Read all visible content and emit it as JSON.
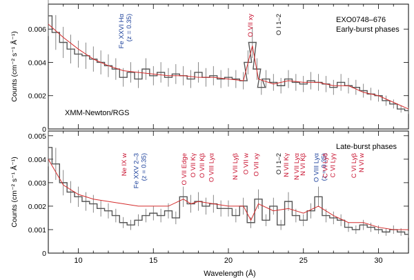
{
  "chart_data": [
    {
      "type": "line",
      "panel": "top",
      "title_lines": [
        "EXO0748–676",
        "Early-burst phases"
      ],
      "corner_label": "XMM-Newton/RGS",
      "xlabel": "",
      "ylabel": "Counts (cm⁻² s⁻¹ Å⁻¹)",
      "xlim": [
        8,
        32
      ],
      "ylim": [
        0,
        0.0075
      ],
      "yticks": [
        "0",
        "0.002",
        "0.004",
        "0.006"
      ],
      "annotations": [
        {
          "x": 13.0,
          "lines": [
            "Fe XXVI Hα",
            "(z = 0.35)"
          ],
          "color": "#1a3f9a"
        },
        {
          "x": 21.6,
          "lines": [
            "O VII xy"
          ],
          "color": "#c8102e"
        },
        {
          "x": 23.5,
          "lines": [
            "O I 1–2"
          ],
          "color": "#111111"
        }
      ],
      "series": [
        {
          "role": "data",
          "color": "#555555",
          "x": [
            8,
            8.5,
            9,
            9.5,
            10,
            10.5,
            11,
            11.5,
            12,
            12.5,
            13,
            13.5,
            14,
            14.5,
            15,
            15.5,
            16,
            16.5,
            17,
            17.5,
            18,
            18.5,
            19,
            19.5,
            20,
            20.5,
            21,
            21.3,
            21.6,
            21.9,
            22.2,
            22.5,
            23,
            23.5,
            24,
            24.5,
            25,
            25.5,
            26,
            26.5,
            27,
            27.5,
            28,
            28.5,
            29,
            29.5,
            30,
            30.5,
            31,
            31.5,
            32
          ],
          "y": [
            0.0068,
            0.0058,
            0.0052,
            0.0048,
            0.0045,
            0.0044,
            0.0042,
            0.004,
            0.0038,
            0.0036,
            0.0031,
            0.0034,
            0.003,
            0.0036,
            0.0032,
            0.0034,
            0.0031,
            0.0033,
            0.0032,
            0.003,
            0.0034,
            0.0031,
            0.0032,
            0.003,
            0.0031,
            0.003,
            0.0029,
            0.004,
            0.0052,
            0.0036,
            0.0025,
            0.003,
            0.0028,
            0.0026,
            0.003,
            0.0028,
            0.0027,
            0.0029,
            0.0028,
            0.0027,
            0.0025,
            0.0028,
            0.0026,
            0.0025,
            0.0023,
            0.0021,
            0.002,
            0.0017,
            0.0015,
            0.0012,
            0.0011
          ]
        },
        {
          "role": "model",
          "color": "#d42a2a",
          "x": [
            8,
            9,
            10,
            11,
            12,
            13,
            14,
            15,
            16,
            17,
            18,
            19,
            20,
            21,
            21.6,
            22,
            23,
            24,
            25,
            26,
            27,
            28,
            29,
            30,
            31,
            32
          ],
          "y": [
            0.0063,
            0.0055,
            0.0048,
            0.0042,
            0.0038,
            0.0035,
            0.0034,
            0.0033,
            0.0032,
            0.0032,
            0.0031,
            0.0031,
            0.003,
            0.0029,
            0.005,
            0.003,
            0.0027,
            0.0029,
            0.0028,
            0.0028,
            0.0026,
            0.0026,
            0.0022,
            0.002,
            0.0016,
            0.0012
          ]
        }
      ]
    },
    {
      "type": "line",
      "panel": "bottom",
      "title_lines": [
        "Late-burst phases"
      ],
      "xlabel": "Wavelength (Å)",
      "ylabel": "Counts (cm⁻² s⁻¹ Å⁻¹)",
      "xlim": [
        8,
        32
      ],
      "ylim": [
        0,
        0.0052
      ],
      "xticks": [
        "10",
        "15",
        "20",
        "25",
        "30"
      ],
      "yticks": [
        "0",
        "0.001",
        "0.002",
        "0.003",
        "0.004",
        "0.005"
      ],
      "annotations": [
        {
          "x": 13.2,
          "lines": [
            "Ne IX w"
          ],
          "color": "#c8102e"
        },
        {
          "x": 14.0,
          "lines": [
            "Fe XXV 2–3",
            "(z = 0.35)"
          ],
          "color": "#1a3f9a"
        },
        {
          "x": 17.2,
          "lines": [
            "O VII Edge"
          ],
          "color": "#c8102e"
        },
        {
          "x": 17.8,
          "lines": [
            "O VII Kγ"
          ],
          "color": "#c8102e"
        },
        {
          "x": 18.4,
          "lines": [
            "O VII Kβ"
          ],
          "color": "#c8102e"
        },
        {
          "x": 19.0,
          "lines": [
            "O VIII Lyα"
          ],
          "color": "#c8102e"
        },
        {
          "x": 20.6,
          "lines": [
            "N VII Lyβ"
          ],
          "color": "#c8102e"
        },
        {
          "x": 21.3,
          "lines": [
            "O VII w"
          ],
          "color": "#c8102e"
        },
        {
          "x": 22.0,
          "lines": [
            "O VII xy"
          ],
          "color": "#c8102e"
        },
        {
          "x": 23.5,
          "lines": [
            "O I 1–2"
          ],
          "color": "#111111"
        },
        {
          "x": 24.0,
          "lines": [
            "N VII Kγ"
          ],
          "color": "#c8102e"
        },
        {
          "x": 24.7,
          "lines": [
            "N VII Lyα"
          ],
          "color": "#c8102e"
        },
        {
          "x": 25.1,
          "lines": [
            "N VI Kβ"
          ],
          "color": "#c8102e"
        },
        {
          "x": 26.0,
          "lines": [
            "O VIII Lyα",
            "(z = 0.35)"
          ],
          "color": "#1a3f9a"
        },
        {
          "x": 26.6,
          "lines": [
            "C VI Lyδ"
          ],
          "color": "#c8102e"
        },
        {
          "x": 27.1,
          "lines": [
            "C VI Lyγ"
          ],
          "color": "#c8102e"
        },
        {
          "x": 28.5,
          "lines": [
            "C VI Lyβ"
          ],
          "color": "#c8102e"
        },
        {
          "x": 29.0,
          "lines": [
            "N VI w"
          ],
          "color": "#c8102e"
        }
      ],
      "series": [
        {
          "role": "data",
          "color": "#555555",
          "x": [
            8,
            8.5,
            9,
            9.5,
            10,
            10.5,
            11,
            11.5,
            12,
            12.5,
            13,
            13.5,
            14,
            14.5,
            15,
            15.5,
            16,
            16.5,
            17,
            17.5,
            18,
            18.5,
            19,
            19.5,
            20,
            20.5,
            21,
            21.5,
            22,
            22.5,
            23,
            23.5,
            24,
            24.5,
            25,
            25.5,
            26,
            26.5,
            27,
            27.5,
            28,
            28.5,
            29,
            29.5,
            30,
            30.5,
            31,
            31.5,
            32
          ],
          "y": [
            0.0045,
            0.0038,
            0.003,
            0.0026,
            0.0024,
            0.0022,
            0.0021,
            0.0019,
            0.0018,
            0.0016,
            0.0013,
            0.0012,
            0.0014,
            0.0016,
            0.0017,
            0.0016,
            0.0018,
            0.0015,
            0.0024,
            0.0021,
            0.0022,
            0.002,
            0.0021,
            0.0019,
            0.0019,
            0.0016,
            0.002,
            0.0013,
            0.0023,
            0.0014,
            0.002,
            0.0012,
            0.0022,
            0.0016,
            0.0014,
            0.0018,
            0.0024,
            0.0016,
            0.0015,
            0.0014,
            0.0011,
            0.001,
            0.0012,
            0.0011,
            0.001,
            0.0009,
            0.001,
            0.0009,
            0.0008
          ]
        },
        {
          "role": "model",
          "color": "#d42a2a",
          "x": [
            8,
            9,
            10,
            11,
            12,
            13,
            14,
            15,
            16,
            17,
            17.5,
            18,
            19,
            20,
            21,
            21.5,
            22,
            23,
            24,
            25,
            26,
            27,
            28,
            29,
            30,
            31,
            32
          ],
          "y": [
            0.004,
            0.0029,
            0.0025,
            0.0023,
            0.0022,
            0.0021,
            0.002,
            0.002,
            0.002,
            0.0023,
            0.0021,
            0.0022,
            0.0021,
            0.002,
            0.002,
            0.0014,
            0.0021,
            0.0018,
            0.0019,
            0.0017,
            0.002,
            0.0016,
            0.0013,
            0.0013,
            0.0011,
            0.001,
            0.001
          ]
        }
      ]
    }
  ]
}
